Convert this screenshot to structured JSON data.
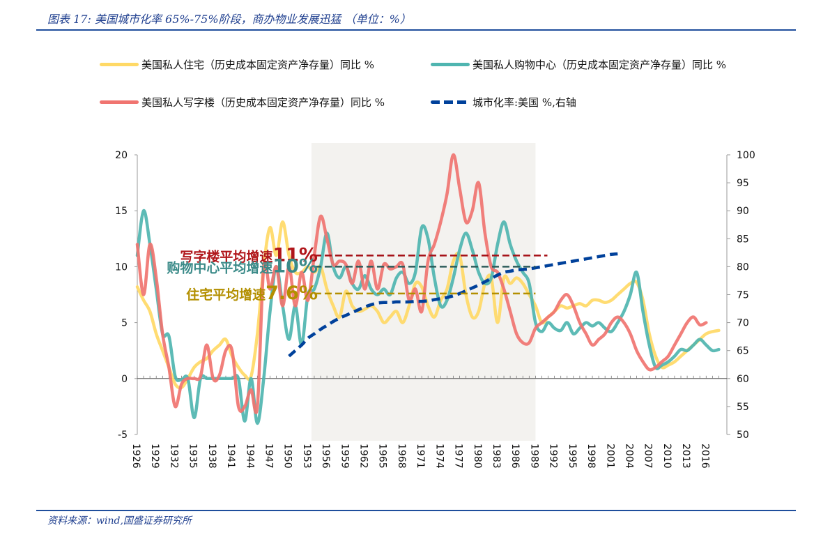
{
  "header": {
    "title_prefix": "图表 17:",
    "title_text": "美国城市化率 65%-75%阶段，商办物业发展迅猛 （单位：%）"
  },
  "footer": {
    "source": "资料来源：wind,国盛证券研究所"
  },
  "legend": [
    {
      "label": "美国私人住宅（历史成本固定资产净存量）同比 %",
      "color": "#ffd966",
      "style": "solid"
    },
    {
      "label": "美国私人购物中心（历史成本固定资产净存量）同比 %",
      "color": "#4fb5b0",
      "style": "solid"
    },
    {
      "label": "美国私人写字楼（历史成本固定资产净存量）同比 %",
      "color": "#f07470",
      "style": "solid"
    },
    {
      "label": "城市化率:美国 %,右轴",
      "color": "#00419b",
      "style": "dashed"
    }
  ],
  "annotations": [
    {
      "text": "写字楼平均增速",
      "value": "11%",
      "color": "#b0151a",
      "level": 11
    },
    {
      "text": "购物中心平均增速",
      "value": "10%",
      "color": "#3a8a88",
      "level": 10
    },
    {
      "text": "住宅平均增速",
      "value": "7.6%",
      "color": "#b38f00",
      "level": 7.6
    }
  ],
  "chart_data": {
    "type": "line",
    "title": "美国城市化率 65%-75%阶段，商办物业发展迅猛 （单位：%）",
    "xlabel": "",
    "ylabel": "",
    "y_left_range": [
      -5,
      20
    ],
    "y_left_ticks": [
      -5,
      0,
      5,
      10,
      15,
      20
    ],
    "y_right_range": [
      50,
      100
    ],
    "y_right_ticks": [
      50,
      55,
      60,
      65,
      70,
      75,
      80,
      85,
      90,
      95,
      100
    ],
    "x_tick_labels": [
      "1926",
      "1929",
      "1932",
      "1935",
      "1938",
      "1941",
      "1944",
      "1947",
      "1950",
      "1953",
      "1956",
      "1959",
      "1962",
      "1965",
      "1968",
      "1971",
      "1974",
      "1977",
      "1980",
      "1983",
      "1986",
      "1989",
      "1992",
      "1995",
      "1998",
      "2001",
      "2004",
      "2007",
      "2010",
      "2013",
      "2016"
    ],
    "x_start": 1926,
    "x_end": 2018,
    "shaded_region": [
      1954,
      1989
    ],
    "legend_position": "top",
    "grid": false,
    "average_lines": [
      {
        "name": "写字楼平均增速",
        "value": 11,
        "from": 1954,
        "to": 1990,
        "color": "#a50f15"
      },
      {
        "name": "购物中心平均增速",
        "value": 10,
        "from": 1954,
        "to": 1989,
        "color": "#2d5c5a"
      },
      {
        "name": "住宅平均增速",
        "value": 7.6,
        "from": 1954,
        "to": 1989,
        "color": "#b38f00"
      }
    ],
    "series": [
      {
        "name": "美国私人住宅（历史成本固定资产净存量）同比 %",
        "axis": "left",
        "x_start": 1926,
        "values": [
          8.2,
          7,
          6,
          4,
          2.5,
          1,
          -0.5,
          -0.8,
          0,
          1,
          1.5,
          1.8,
          2.5,
          3,
          3.5,
          2,
          1,
          0.3,
          0.2,
          4,
          10,
          13.5,
          11,
          14,
          11,
          9.5,
          9.5,
          10,
          9.5,
          10,
          8,
          6.5,
          5.5,
          7.8,
          6.5,
          6,
          6.2,
          6.5,
          6,
          5,
          5.5,
          6,
          5,
          6.5,
          8.5,
          8.2,
          6.5,
          5.5,
          7,
          8,
          10.5,
          11,
          7.5,
          5.5,
          6,
          8.5,
          9,
          5,
          9,
          8.5,
          9,
          8.5,
          7.5,
          6.5,
          5,
          5.5,
          6,
          6.5,
          6.3,
          6.5,
          6.7,
          6.5,
          7,
          7,
          6.8,
          7,
          7.5,
          8,
          8.5,
          8.6,
          7,
          4,
          2,
          1,
          1.2,
          1.5,
          2,
          2.5,
          3,
          3.5,
          4,
          4.2,
          4.3
        ]
      },
      {
        "name": "美国私人购物中心（历史成本固定资产净存量）同比 %",
        "axis": "left",
        "x_start": 1926,
        "values": [
          11,
          15,
          12,
          8,
          4,
          3.8,
          0.2,
          -0.1,
          0,
          -3.5,
          0,
          0,
          0,
          0,
          0,
          0,
          0,
          -3.8,
          0,
          -4,
          0,
          6,
          10,
          6.5,
          3.5,
          6.5,
          3,
          7.5,
          8,
          10,
          13,
          10,
          9,
          10,
          8.5,
          8,
          9.2,
          8,
          7.5,
          8,
          7.5,
          9,
          9.5,
          8.5,
          9.5,
          13.5,
          12.5,
          9,
          6.5,
          7,
          9,
          11.5,
          13,
          11.5,
          9.5,
          8.5,
          9,
          12,
          14,
          12,
          10.5,
          9.5,
          8.5,
          5,
          4.2,
          5,
          4.5,
          4.3,
          5,
          4,
          4.5,
          5,
          4.7,
          5,
          4.5,
          4.2,
          5,
          6,
          7.5,
          9.5,
          6,
          3,
          1,
          1.2,
          1.5,
          2,
          2.6,
          2.5,
          3,
          3.5,
          3,
          2.5,
          2.6
        ]
      },
      {
        "name": "美国私人写字楼（历史成本固定资产净存量）同比 %",
        "axis": "left",
        "x_start": 1926,
        "values": [
          12,
          7.5,
          12,
          9,
          4,
          1,
          -2.5,
          -0.5,
          0,
          0,
          0.2,
          3,
          0,
          0.3,
          2.5,
          2.5,
          -2.5,
          -2.5,
          -1,
          -2.5,
          10,
          8,
          10,
          6.5,
          10,
          6.5,
          9.5,
          7,
          11,
          14.5,
          12.5,
          10.2,
          10.5,
          10.2,
          8.5,
          10.5,
          8,
          10.5,
          8,
          10.2,
          9.8,
          10,
          10.2,
          7,
          8,
          6,
          10.5,
          12,
          14,
          16.5,
          20,
          17,
          14,
          15,
          17.5,
          13,
          10,
          9.5,
          8,
          6,
          4,
          3.2,
          3.2,
          4.5,
          5,
          5.5,
          6,
          7,
          7.5,
          6.5,
          5,
          4,
          3,
          3.5,
          4,
          5,
          5.5,
          5,
          4,
          2.5,
          1.5,
          0.8,
          1,
          1.5,
          2,
          3,
          4,
          5,
          5.5,
          4.8,
          5
        ]
      },
      {
        "name": "城市化率:美国 %,右轴",
        "axis": "right",
        "x_start": 1950,
        "values": [
          64,
          65,
          66,
          67.2,
          68,
          68.8,
          69.5,
          70.2,
          70.8,
          71.3,
          71.8,
          72.3,
          72.8,
          73.2,
          73.5,
          73.6,
          73.6,
          73.7,
          73.7,
          73.7,
          73.8,
          73.8,
          73.9,
          74.1,
          74.3,
          74.5,
          74.8,
          75.2,
          75.7,
          76.2,
          76.7,
          77.3,
          77.9,
          78.5,
          79,
          79.2,
          79.4,
          79.5,
          79.6,
          79.8,
          80,
          80.2,
          80.4,
          80.6,
          80.8,
          81,
          81.2,
          81.4,
          81.6,
          81.8,
          82,
          82.2,
          82.3
        ]
      }
    ]
  }
}
